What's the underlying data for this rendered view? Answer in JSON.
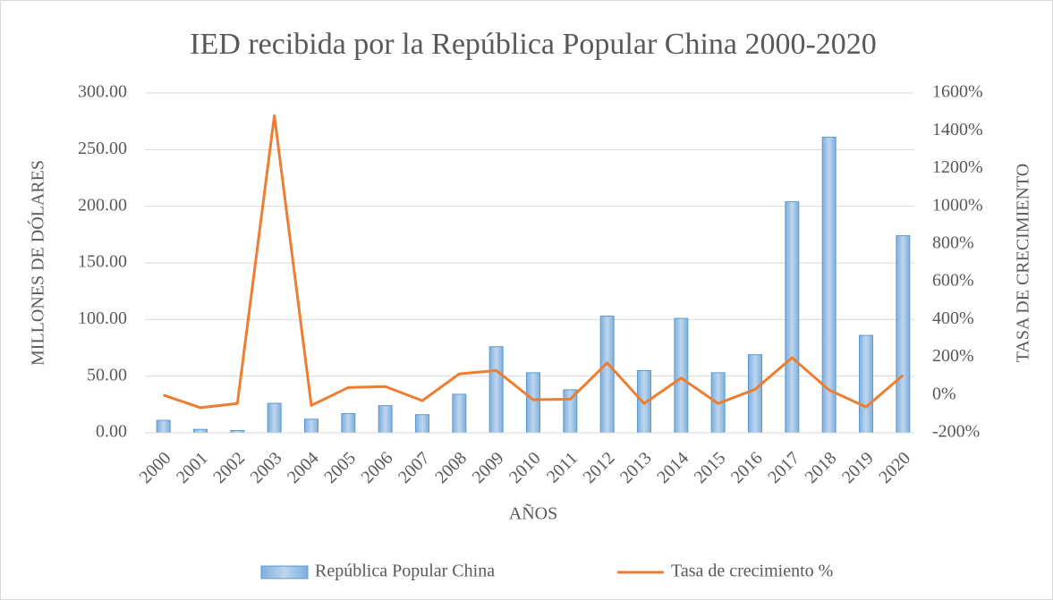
{
  "chart_data": {
    "type": "bar-line",
    "title": "IED recibida por la República Popular China 2000-2020",
    "xlabel": "AÑOS",
    "ylabel": "MILLONES DE DÓLARES",
    "y2label": "TASA DE CRECIMIENTO",
    "categories": [
      "2000",
      "2001",
      "2002",
      "2003",
      "2004",
      "2005",
      "2006",
      "2007",
      "2008",
      "2009",
      "2010",
      "2011",
      "2012",
      "2013",
      "2014",
      "2015",
      "2016",
      "2017",
      "2018",
      "2019",
      "2020"
    ],
    "series": [
      {
        "name": "República Popular China",
        "type": "bar",
        "color": "#9dc3e6",
        "values": [
          11,
          3,
          2,
          26,
          12,
          17,
          24,
          16,
          34,
          76,
          53,
          38,
          103,
          55,
          101,
          53,
          69,
          204,
          261,
          86,
          174
        ]
      },
      {
        "name": "Tasa de crecimiento %",
        "type": "line",
        "axis": "y2",
        "color": "#ed7d31",
        "values": [
          0,
          -67,
          -45,
          1480,
          -55,
          40,
          45,
          -30,
          112,
          130,
          -25,
          -22,
          170,
          -45,
          90,
          -45,
          30,
          198,
          27,
          -63,
          105
        ]
      }
    ],
    "ylim": [
      0,
      300
    ],
    "yticks": [
      {
        "value": 0,
        "label": "0.00"
      },
      {
        "value": 50,
        "label": "50.00"
      },
      {
        "value": 100,
        "label": "100.00"
      },
      {
        "value": 150,
        "label": "150.00"
      },
      {
        "value": 200,
        "label": "200.00"
      },
      {
        "value": 250,
        "label": "250.00"
      },
      {
        "value": 300,
        "label": "300.00"
      }
    ],
    "y2lim": [
      -200,
      1600
    ],
    "y2ticks": [
      {
        "value": -200,
        "label": "-200%"
      },
      {
        "value": 0,
        "label": "0%"
      },
      {
        "value": 200,
        "label": "200%"
      },
      {
        "value": 400,
        "label": "400%"
      },
      {
        "value": 600,
        "label": "600%"
      },
      {
        "value": 800,
        "label": "800%"
      },
      {
        "value": 1000,
        "label": "1000%"
      },
      {
        "value": 1200,
        "label": "1200%"
      },
      {
        "value": 1400,
        "label": "1400%"
      },
      {
        "value": 1600,
        "label": "1600%"
      }
    ],
    "grid": true,
    "legend": "bottom"
  }
}
